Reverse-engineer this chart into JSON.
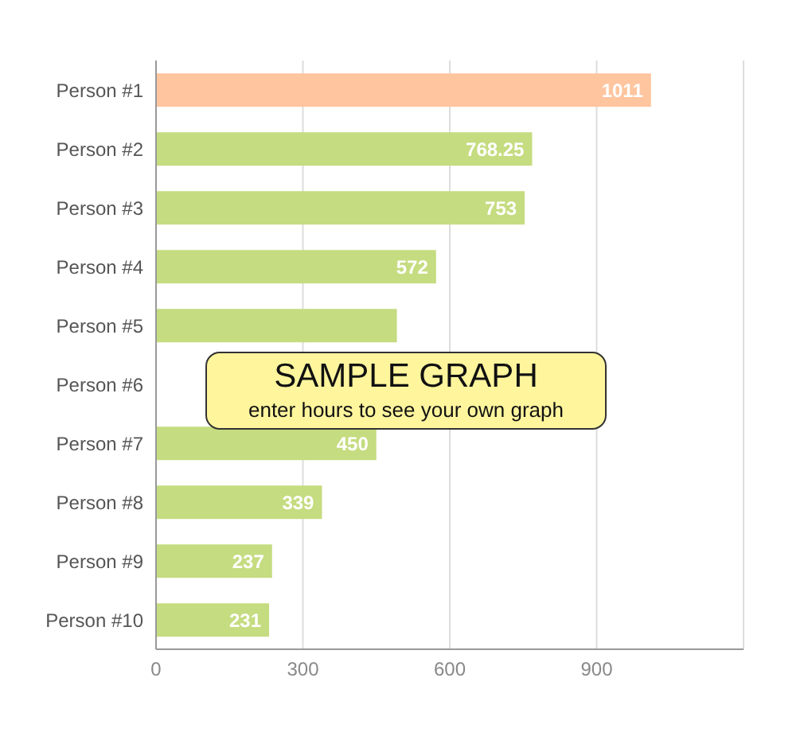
{
  "chart_data": {
    "type": "bar",
    "orientation": "horizontal",
    "categories": [
      "Person #1",
      "Person #2",
      "Person #3",
      "Person #4",
      "Person #5",
      "Person #6",
      "Person #7",
      "Person #8",
      "Person #9",
      "Person #10"
    ],
    "values": [
      1011,
      768.25,
      753,
      572,
      492,
      null,
      450,
      339,
      237,
      231
    ],
    "value_labels": [
      "1011",
      "768.25",
      "753",
      "572",
      null,
      null,
      "450",
      "339",
      "237",
      "231"
    ],
    "colors": [
      "#ffc59f",
      "#c5dc80",
      "#c5dc80",
      "#c5dc80",
      "#c5dc80",
      "#c5dc80",
      "#c5dc80",
      "#c5dc80",
      "#c5dc80",
      "#c5dc80"
    ],
    "xlim": [
      0,
      1200
    ],
    "xticks": [
      0,
      300,
      600,
      900
    ],
    "grid": "x",
    "annotations": [
      "SAMPLE GRAPH",
      "enter hours to see your own graph"
    ]
  }
}
